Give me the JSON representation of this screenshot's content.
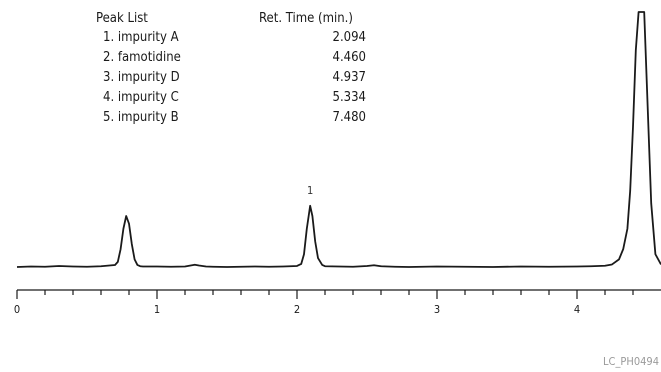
{
  "peak_list": {
    "header_name": "Peak List",
    "header_time": "Ret. Time (min.)",
    "rows": [
      {
        "label": "1. impurity A",
        "time": "2.094"
      },
      {
        "label": "2. famotidine",
        "time": "4.460"
      },
      {
        "label": "3. impurity D",
        "time": "4.937"
      },
      {
        "label": "4. impurity C",
        "time": "5.334"
      },
      {
        "label": "5. impurity B",
        "time": "7.480"
      }
    ]
  },
  "figure_code": "LC_PH0494",
  "chart_data": {
    "type": "line",
    "title": "",
    "xlabel": "",
    "ylabel": "",
    "xlim": [
      0,
      4.6
    ],
    "ylim": [
      0,
      1
    ],
    "x_ticks": [
      0,
      1,
      2,
      3,
      4
    ],
    "x_minor_step": 0.2,
    "grid": false,
    "line_color": "#1a1a1a",
    "peak_annotations": [
      {
        "label": "1",
        "x": 2.094
      }
    ],
    "series": [
      {
        "x": [
          0,
          0.1,
          0.2,
          0.3,
          0.4,
          0.5,
          0.6,
          0.7,
          0.72,
          0.74,
          0.76,
          0.78,
          0.8,
          0.82,
          0.84,
          0.86,
          0.88,
          0.9,
          1.0,
          1.1,
          1.2,
          1.27,
          1.3,
          1.35,
          1.4,
          1.5,
          1.6,
          1.7,
          1.8,
          1.9,
          2.0,
          2.03,
          2.05,
          2.07,
          2.094,
          2.11,
          2.13,
          2.15,
          2.18,
          2.2,
          2.3,
          2.4,
          2.5,
          2.55,
          2.6,
          2.7,
          2.8,
          2.9,
          3.0,
          3.2,
          3.4,
          3.6,
          3.8,
          4.0,
          4.1,
          4.2,
          4.25,
          4.3,
          4.33,
          4.36,
          4.38,
          4.4,
          4.42,
          4.44,
          4.46,
          4.48,
          4.5,
          4.53,
          4.56,
          4.6
        ],
        "y": [
          0.0,
          0.002,
          0.001,
          0.004,
          0.002,
          0.001,
          0.003,
          0.008,
          0.02,
          0.07,
          0.15,
          0.2,
          0.17,
          0.09,
          0.03,
          0.008,
          0.003,
          0.002,
          0.002,
          0.001,
          0.002,
          0.009,
          0.006,
          0.002,
          0.001,
          0.0,
          0.001,
          0.002,
          0.001,
          0.002,
          0.004,
          0.012,
          0.05,
          0.15,
          0.24,
          0.2,
          0.1,
          0.035,
          0.008,
          0.003,
          0.002,
          0.001,
          0.004,
          0.007,
          0.003,
          0.001,
          0.0,
          0.001,
          0.002,
          0.001,
          0.0,
          0.002,
          0.001,
          0.002,
          0.003,
          0.005,
          0.01,
          0.03,
          0.07,
          0.15,
          0.3,
          0.55,
          0.85,
          1.0,
          1.0,
          1.0,
          0.7,
          0.25,
          0.05,
          0.01
        ]
      }
    ]
  }
}
